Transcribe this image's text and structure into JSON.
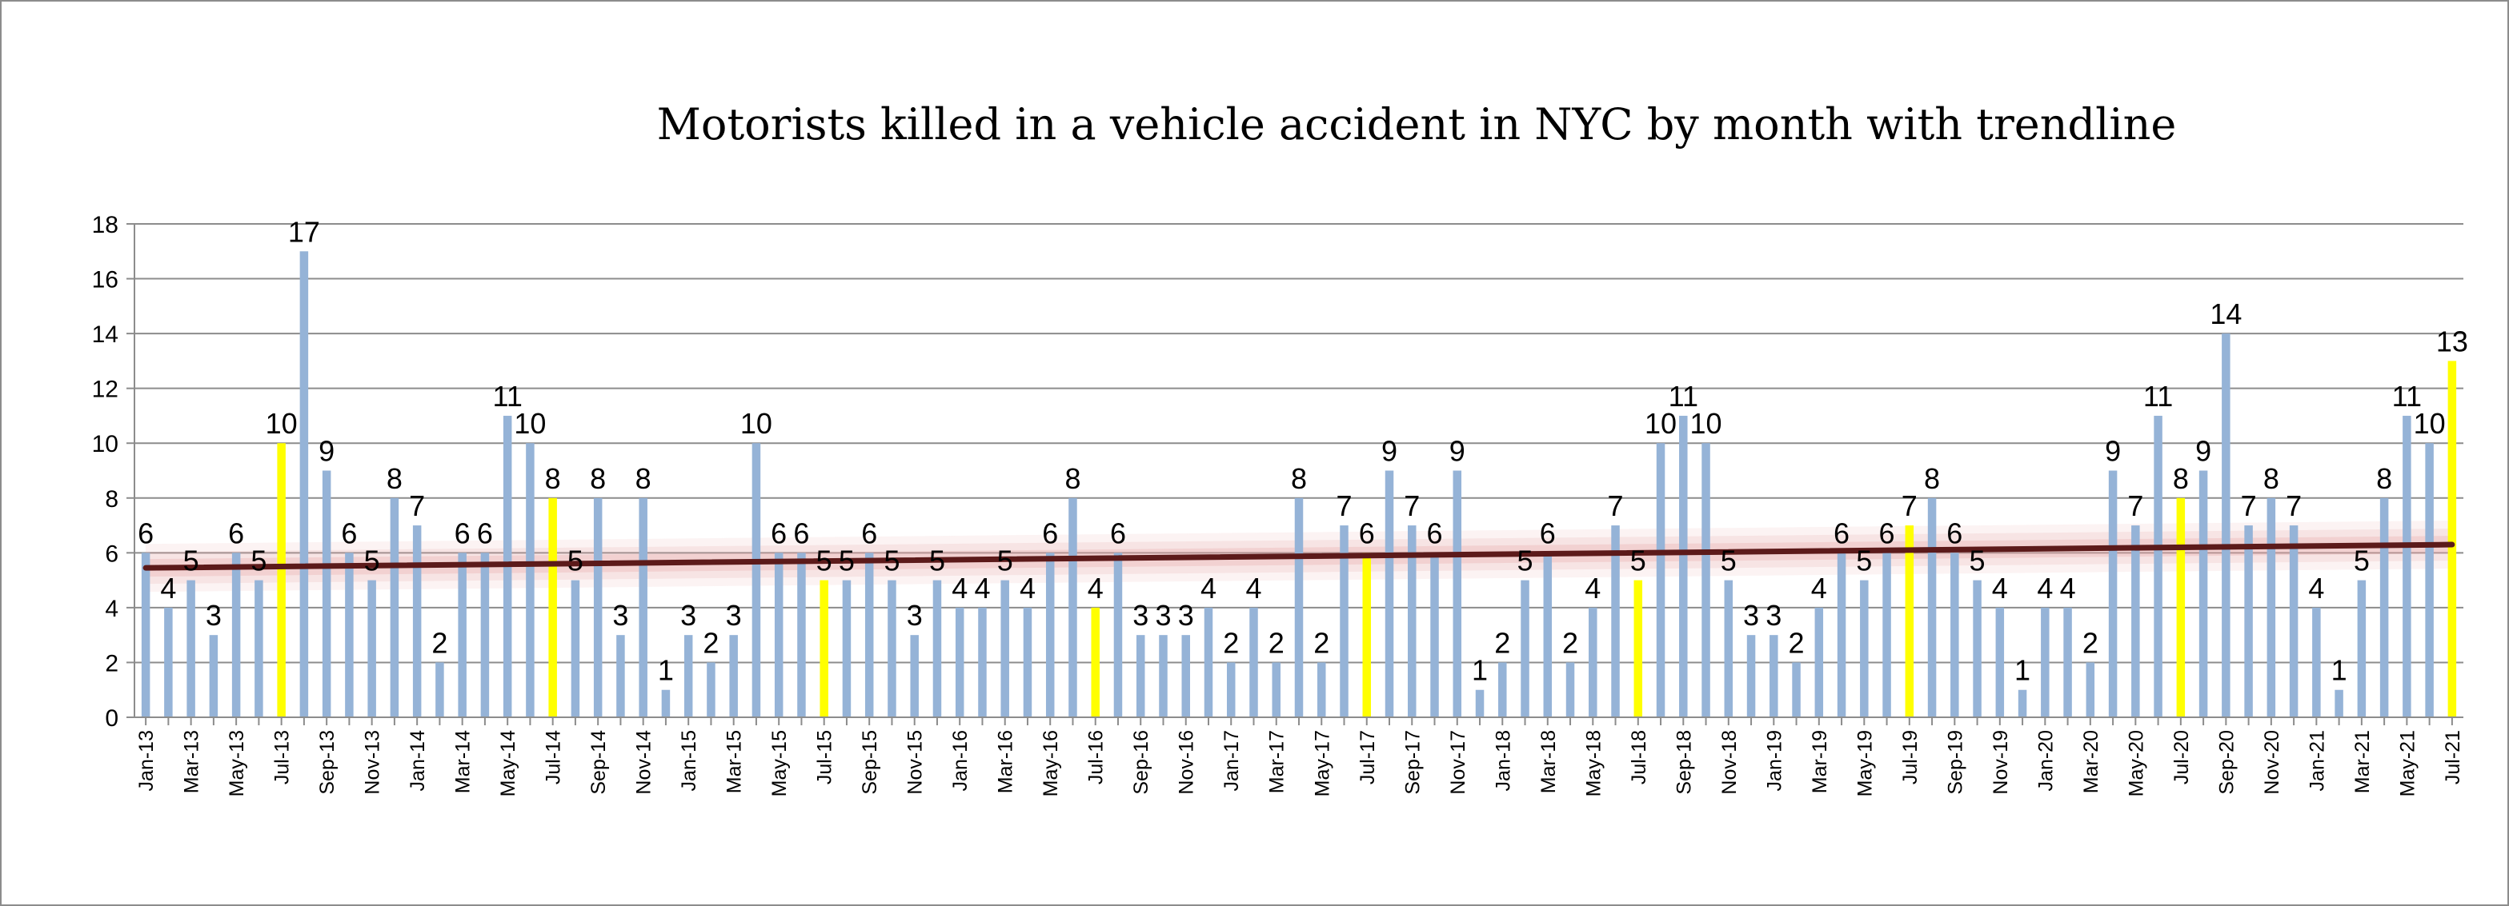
{
  "chart_data": {
    "type": "bar",
    "title": "Motorists killed in a vehicle accident in NYC by month with trendline",
    "xlabel": "",
    "ylabel": "",
    "ylim": [
      0,
      18
    ],
    "yticks": [
      0,
      2,
      4,
      6,
      8,
      10,
      12,
      14,
      16,
      18
    ],
    "grid": true,
    "legend": "none",
    "colors": {
      "bar": "#95b3d7",
      "highlight": "#ffff00",
      "trendline": "#5c1a1a",
      "trend_glow": "#e6a0a0",
      "grid": "#8c8c8c"
    },
    "highlighted_categories": [
      "Jul-13",
      "Jul-14",
      "Jul-15",
      "Jul-16",
      "Jul-17",
      "Jul-18",
      "Jul-19",
      "Jul-20",
      "Jul-21"
    ],
    "trendline": {
      "type": "linear",
      "start": 5.45,
      "end": 6.3
    },
    "categories": [
      "Jan-13",
      "Feb-13",
      "Mar-13",
      "Apr-13",
      "May-13",
      "Jun-13",
      "Jul-13",
      "Aug-13",
      "Sep-13",
      "Oct-13",
      "Nov-13",
      "Dec-13",
      "Jan-14",
      "Feb-14",
      "Mar-14",
      "Apr-14",
      "May-14",
      "Jun-14",
      "Jul-14",
      "Aug-14",
      "Sep-14",
      "Oct-14",
      "Nov-14",
      "Dec-14",
      "Jan-15",
      "Feb-15",
      "Mar-15",
      "Apr-15",
      "May-15",
      "Jun-15",
      "Jul-15",
      "Aug-15",
      "Sep-15",
      "Oct-15",
      "Nov-15",
      "Dec-15",
      "Jan-16",
      "Feb-16",
      "Mar-16",
      "Apr-16",
      "May-16",
      "Jun-16",
      "Jul-16",
      "Aug-16",
      "Sep-16",
      "Oct-16",
      "Nov-16",
      "Dec-16",
      "Jan-17",
      "Feb-17",
      "Mar-17",
      "Apr-17",
      "May-17",
      "Jun-17",
      "Jul-17",
      "Aug-17",
      "Sep-17",
      "Oct-17",
      "Nov-17",
      "Dec-17",
      "Jan-18",
      "Feb-18",
      "Mar-18",
      "Apr-18",
      "May-18",
      "Jun-18",
      "Jul-18",
      "Aug-18",
      "Sep-18",
      "Oct-18",
      "Nov-18",
      "Dec-18",
      "Jan-19",
      "Feb-19",
      "Mar-19",
      "Apr-19",
      "May-19",
      "Jun-19",
      "Jul-19",
      "Aug-19",
      "Sep-19",
      "Oct-19",
      "Nov-19",
      "Dec-19",
      "Jan-20",
      "Feb-20",
      "Mar-20",
      "Apr-20",
      "May-20",
      "Jun-20",
      "Jul-20",
      "Aug-20",
      "Sep-20",
      "Oct-20",
      "Nov-20",
      "Dec-20",
      "Jan-21",
      "Feb-21",
      "Mar-21",
      "Apr-21",
      "May-21",
      "Jun-21",
      "Jul-21"
    ],
    "values": [
      6,
      4,
      5,
      3,
      6,
      5,
      10,
      17,
      9,
      6,
      5,
      8,
      7,
      2,
      6,
      6,
      11,
      10,
      8,
      5,
      8,
      3,
      8,
      1,
      3,
      2,
      3,
      10,
      6,
      6,
      5,
      5,
      6,
      5,
      3,
      5,
      4,
      4,
      5,
      4,
      6,
      8,
      4,
      6,
      3,
      3,
      3,
      4,
      2,
      4,
      2,
      8,
      2,
      7,
      6,
      9,
      7,
      6,
      9,
      1,
      2,
      5,
      6,
      2,
      4,
      7,
      5,
      10,
      11,
      10,
      5,
      3,
      3,
      2,
      4,
      6,
      5,
      6,
      7,
      8,
      6,
      5,
      4,
      1,
      4,
      4,
      2,
      9,
      7,
      11,
      8,
      9,
      14,
      7,
      8,
      7,
      4,
      1,
      5,
      8,
      11,
      10,
      13
    ]
  }
}
